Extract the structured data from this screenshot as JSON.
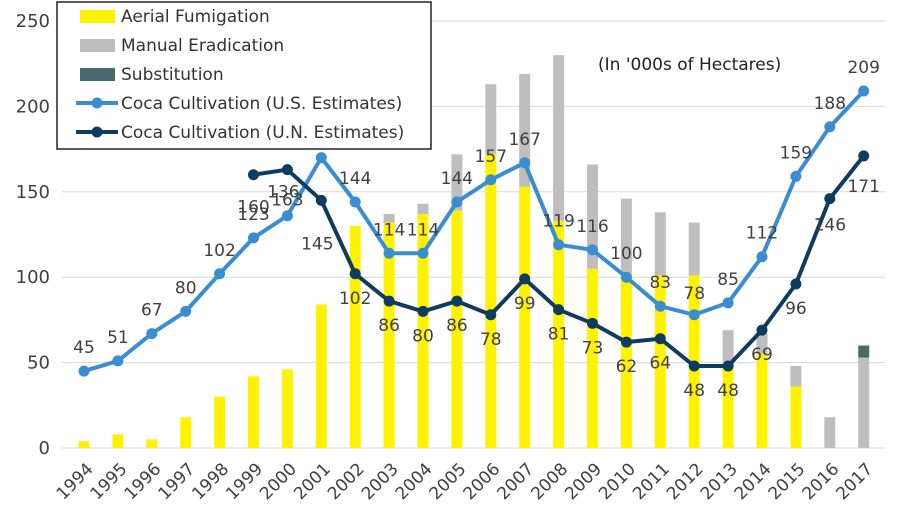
{
  "chart_data": {
    "type": "bar",
    "note": "(In '000s of Hectares)",
    "categories": [
      "1994",
      "1995",
      "1996",
      "1997",
      "1998",
      "1999",
      "2000",
      "2001",
      "2002",
      "2003",
      "2004",
      "2005",
      "2006",
      "2007",
      "2008",
      "2009",
      "2010",
      "2011",
      "2012",
      "2013",
      "2014",
      "2015",
      "2016",
      "2017"
    ],
    "ylim": [
      0,
      250
    ],
    "yticks": [
      0,
      50,
      100,
      150,
      200,
      250
    ],
    "grid": true,
    "legend_position": "top-left",
    "stacked_bars": [
      {
        "name": "Aerial Fumigation",
        "color": "#FFF200",
        "values": [
          4,
          8,
          5,
          18,
          30,
          42,
          46,
          84,
          130,
          132,
          137,
          139,
          172,
          153,
          133,
          105,
          102,
          101,
          101,
          47,
          55,
          36,
          0,
          0
        ]
      },
      {
        "name": "Manual Eradication",
        "color": "#BEBEBE",
        "values": [
          0,
          0,
          0,
          0,
          0,
          0,
          0,
          0,
          0,
          5,
          6,
          33,
          41,
          66,
          97,
          61,
          44,
          37,
          31,
          22,
          12,
          12,
          18,
          53
        ]
      },
      {
        "name": "Substitution",
        "color": "#476A6F",
        "values": [
          0,
          0,
          0,
          0,
          0,
          0,
          0,
          0,
          0,
          0,
          0,
          0,
          0,
          0,
          0,
          0,
          0,
          0,
          0,
          0,
          0,
          0,
          0,
          7
        ]
      }
    ],
    "lines": [
      {
        "name": "Coca Cultivation (U.S. Estimates)",
        "color": "#3A8DD1",
        "values": [
          45,
          51,
          67,
          80,
          102,
          123,
          136,
          170,
          144,
          114,
          114,
          144,
          157,
          167,
          119,
          116,
          100,
          83,
          78,
          85,
          112,
          159,
          188,
          209
        ],
        "labels": [
          "45",
          "51",
          "67",
          "80",
          "102",
          "123",
          "136",
          "",
          "144",
          "114",
          "114",
          "144",
          "157",
          "167",
          "119",
          "116",
          "100",
          "83",
          "78",
          "85",
          "112",
          "159",
          "188",
          "209"
        ]
      },
      {
        "name": "Coca Cultivation (U.N. Estimates)",
        "color": "#0D3C5E",
        "values": [
          null,
          null,
          null,
          null,
          null,
          160,
          163,
          145,
          102,
          86,
          80,
          86,
          78,
          99,
          81,
          73,
          62,
          64,
          48,
          48,
          69,
          96,
          146,
          171
        ],
        "labels": [
          "",
          "",
          "",
          "",
          "",
          "160",
          "163",
          "145",
          "102",
          "86",
          "80",
          "86",
          "78",
          "99",
          "81",
          "73",
          "62",
          "64",
          "48",
          "48",
          "69",
          "96",
          "146",
          "171"
        ]
      }
    ]
  }
}
